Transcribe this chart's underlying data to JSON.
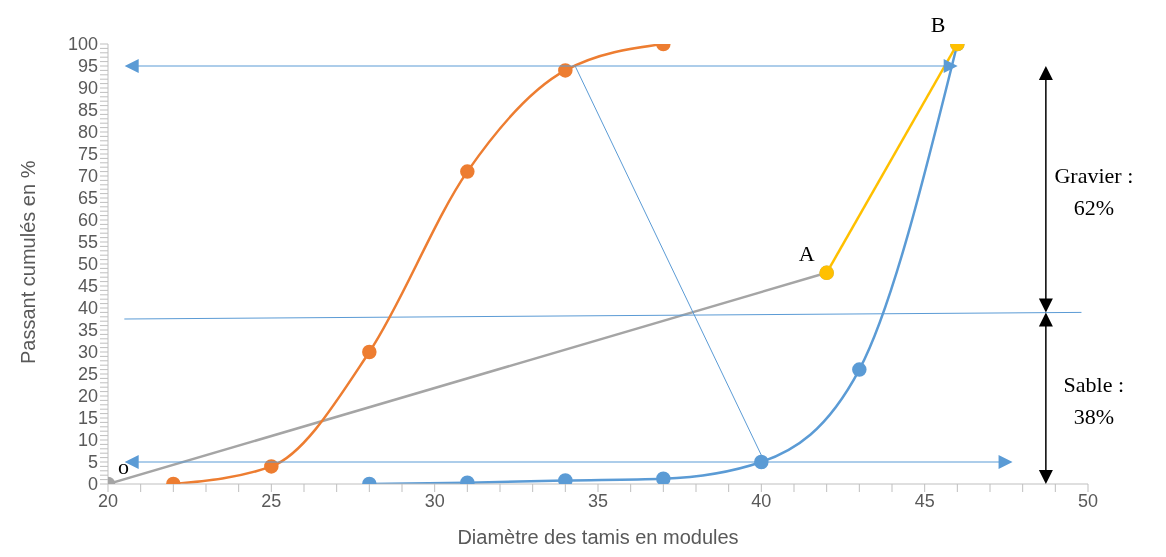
{
  "chart_data": {
    "type": "line",
    "xlabel": "Diamètre des tamis en modules",
    "ylabel": "Passant cumulés en %",
    "xlim": [
      20,
      50
    ],
    "ylim": [
      0,
      100
    ],
    "xticks": [
      20,
      {
        "value": 21,
        "label": null
      },
      {
        "value": 22,
        "label": null
      },
      {
        "value": 23,
        "label": null
      },
      {
        "value": 24,
        "label": null
      },
      25,
      {
        "value": 26,
        "label": null
      },
      {
        "value": 27,
        "label": null
      },
      {
        "value": 28,
        "label": null
      },
      {
        "value": 29,
        "label": null
      },
      30,
      {
        "value": 31,
        "label": null
      },
      {
        "value": 32,
        "label": null
      },
      {
        "value": 33,
        "label": null
      },
      {
        "value": 34,
        "label": null
      },
      35,
      {
        "value": 36,
        "label": null
      },
      {
        "value": 37,
        "label": null
      },
      {
        "value": 38,
        "label": null
      },
      {
        "value": 39,
        "label": null
      },
      40,
      {
        "value": 41,
        "label": null
      },
      {
        "value": 42,
        "label": null
      },
      {
        "value": 43,
        "label": null
      },
      {
        "value": 44,
        "label": null
      },
      45,
      {
        "value": 46,
        "label": null
      },
      {
        "value": 47,
        "label": null
      },
      {
        "value": 48,
        "label": null
      },
      {
        "value": 49,
        "label": null
      },
      50
    ],
    "yticks": [
      0,
      {
        "value": 1,
        "label": null
      },
      {
        "value": 2,
        "label": null
      },
      {
        "value": 3,
        "label": null
      },
      {
        "value": 4,
        "label": null
      },
      5,
      {
        "value": 6,
        "label": null
      },
      {
        "value": 7,
        "label": null
      },
      {
        "value": 8,
        "label": null
      },
      {
        "value": 9,
        "label": null
      },
      10,
      {
        "value": 11,
        "label": null
      },
      {
        "value": 12,
        "label": null
      },
      {
        "value": 13,
        "label": null
      },
      {
        "value": 14,
        "label": null
      },
      15,
      {
        "value": 16,
        "label": null
      },
      {
        "value": 17,
        "label": null
      },
      {
        "value": 18,
        "label": null
      },
      {
        "value": 19,
        "label": null
      },
      20,
      {
        "value": 21,
        "label": null
      },
      {
        "value": 22,
        "label": null
      },
      {
        "value": 23,
        "label": null
      },
      {
        "value": 24,
        "label": null
      },
      25,
      {
        "value": 26,
        "label": null
      },
      {
        "value": 27,
        "label": null
      },
      {
        "value": 28,
        "label": null
      },
      {
        "value": 29,
        "label": null
      },
      30,
      {
        "value": 31,
        "label": null
      },
      {
        "value": 32,
        "label": null
      },
      {
        "value": 33,
        "label": null
      },
      {
        "value": 34,
        "label": null
      },
      35,
      {
        "value": 36,
        "label": null
      },
      {
        "value": 37,
        "label": null
      },
      {
        "value": 38,
        "label": null
      },
      {
        "value": 39,
        "label": null
      },
      40,
      {
        "value": 41,
        "label": null
      },
      {
        "value": 42,
        "label": null
      },
      {
        "value": 43,
        "label": null
      },
      {
        "value": 44,
        "label": null
      },
      45,
      {
        "value": 46,
        "label": null
      },
      {
        "value": 47,
        "label": null
      },
      {
        "value": 48,
        "label": null
      },
      {
        "value": 49,
        "label": null
      },
      50,
      {
        "value": 51,
        "label": null
      },
      {
        "value": 52,
        "label": null
      },
      {
        "value": 53,
        "label": null
      },
      {
        "value": 54,
        "label": null
      },
      55,
      {
        "value": 56,
        "label": null
      },
      {
        "value": 57,
        "label": null
      },
      {
        "value": 58,
        "label": null
      },
      {
        "value": 59,
        "label": null
      },
      60,
      {
        "value": 61,
        "label": null
      },
      {
        "value": 62,
        "label": null
      },
      {
        "value": 63,
        "label": null
      },
      {
        "value": 64,
        "label": null
      },
      65,
      {
        "value": 66,
        "label": null
      },
      {
        "value": 67,
        "label": null
      },
      {
        "value": 68,
        "label": null
      },
      {
        "value": 69,
        "label": null
      },
      70,
      {
        "value": 71,
        "label": null
      },
      {
        "value": 72,
        "label": null
      },
      {
        "value": 73,
        "label": null
      },
      {
        "value": 74,
        "label": null
      },
      75,
      {
        "value": 76,
        "label": null
      },
      {
        "value": 77,
        "label": null
      },
      {
        "value": 78,
        "label": null
      },
      {
        "value": 79,
        "label": null
      },
      80,
      {
        "value": 81,
        "label": null
      },
      {
        "value": 82,
        "label": null
      },
      {
        "value": 83,
        "label": null
      },
      {
        "value": 84,
        "label": null
      },
      85,
      {
        "value": 86,
        "label": null
      },
      {
        "value": 87,
        "label": null
      },
      {
        "value": 88,
        "label": null
      },
      {
        "value": 89,
        "label": null
      },
      90,
      {
        "value": 91,
        "label": null
      },
      {
        "value": 92,
        "label": null
      },
      {
        "value": 93,
        "label": null
      },
      {
        "value": 94,
        "label": null
      },
      95,
      {
        "value": 96,
        "label": null
      },
      {
        "value": 97,
        "label": null
      },
      {
        "value": 98,
        "label": null
      },
      {
        "value": 99,
        "label": null
      },
      100
    ],
    "series": [
      {
        "color": "#a5a5a5",
        "x": [
          20,
          42
        ],
        "values": [
          0,
          48
        ],
        "marker": "circle",
        "line_style": "solid"
      },
      {
        "color": "#5b9bd5",
        "x": [
          34.3,
          40.1
        ],
        "values": [
          95,
          5
        ],
        "marker": "none",
        "line_style": "solid"
      },
      {
        "color": "#5b9bd5",
        "x": [
          20.5,
          49.8
        ],
        "values": [
          37.5,
          39
        ],
        "marker": "none",
        "line_style": "solid"
      },
      {
        "color": "#ed7d31",
        "x": [
          22,
          25,
          28,
          31,
          34,
          37
        ],
        "values": [
          0,
          4,
          30,
          71,
          94,
          100
        ],
        "marker": "circle",
        "line_style": "solid"
      },
      {
        "color": "#5b9bd5",
        "x": [
          28,
          31,
          34,
          37,
          40,
          43,
          46
        ],
        "values": [
          0,
          0.3,
          0.8,
          1.2,
          5,
          26,
          100
        ],
        "marker": "circle",
        "line_style": "solid"
      },
      {
        "color": "#ffc000",
        "x": [
          42,
          46
        ],
        "values": [
          48,
          100
        ],
        "marker": "circle",
        "line_style": "solid"
      }
    ],
    "ref_lines": [
      {
        "axis": "y",
        "value": 95,
        "color": "#5b9bd5"
      },
      {
        "axis": "y",
        "value": 5,
        "color": "#5b9bd5"
      }
    ],
    "annotations": [
      {
        "text": "o",
        "x": 20,
        "y": 0
      },
      {
        "text": "A",
        "x": 42,
        "y": 48
      },
      {
        "text": "B",
        "x": 46,
        "y": 100
      },
      "Gravier : 62%",
      "Sable : 38%"
    ]
  }
}
